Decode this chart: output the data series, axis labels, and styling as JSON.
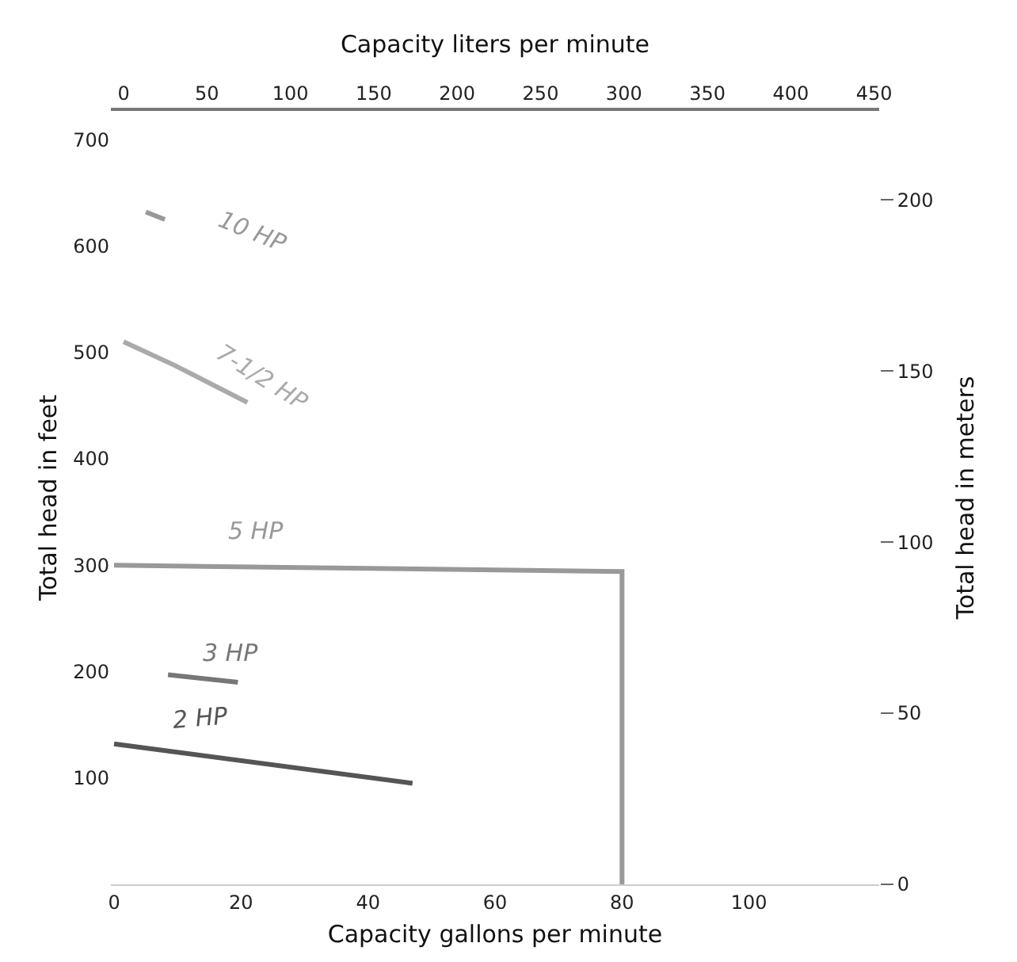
{
  "chart_data": {
    "type": "line",
    "xlabel": "Capacity gallons per minute",
    "ylabel": "Total head in feet",
    "y2label": "Total head in meters",
    "x2label": "Capacity liters per minute",
    "xlim": [
      -0.5,
      120.5
    ],
    "xticks": [
      0,
      20,
      40,
      60,
      80,
      100
    ],
    "ylim": [
      0,
      727
    ],
    "yticks": [
      100,
      200,
      300,
      400,
      500,
      600,
      700
    ],
    "y2lim": [
      0,
      226
    ],
    "y2ticks": [
      0,
      50,
      100,
      150,
      200
    ],
    "x2lim": [
      -7.6,
      453
    ],
    "x2ticks": [
      0,
      50,
      100,
      150,
      200,
      250,
      300,
      350,
      400,
      450
    ],
    "series": [
      {
        "name": "2 HP",
        "color": "#555555",
        "x": [
          0,
          47
        ],
        "values": [
          132,
          95
        ]
      },
      {
        "name": "3 HP",
        "color": "#777777",
        "x": [
          8.5,
          19.5
        ],
        "values": [
          197,
          190
        ]
      },
      {
        "name": "5 HP",
        "color": "#999999",
        "x": [
          0,
          40,
          80,
          80
        ],
        "values": [
          300,
          297,
          294,
          0
        ]
      },
      {
        "name": "7-1/2 HP",
        "color": "#aaaaaa",
        "x": [
          1.5,
          9.5,
          21
        ],
        "values": [
          510,
          488,
          453
        ]
      },
      {
        "name": "10 HP",
        "color": "#999999",
        "x": [
          5,
          8
        ],
        "values": [
          632,
          625
        ]
      }
    ],
    "grid": false,
    "legend": false,
    "marker": "none",
    "line_style": "solid"
  }
}
